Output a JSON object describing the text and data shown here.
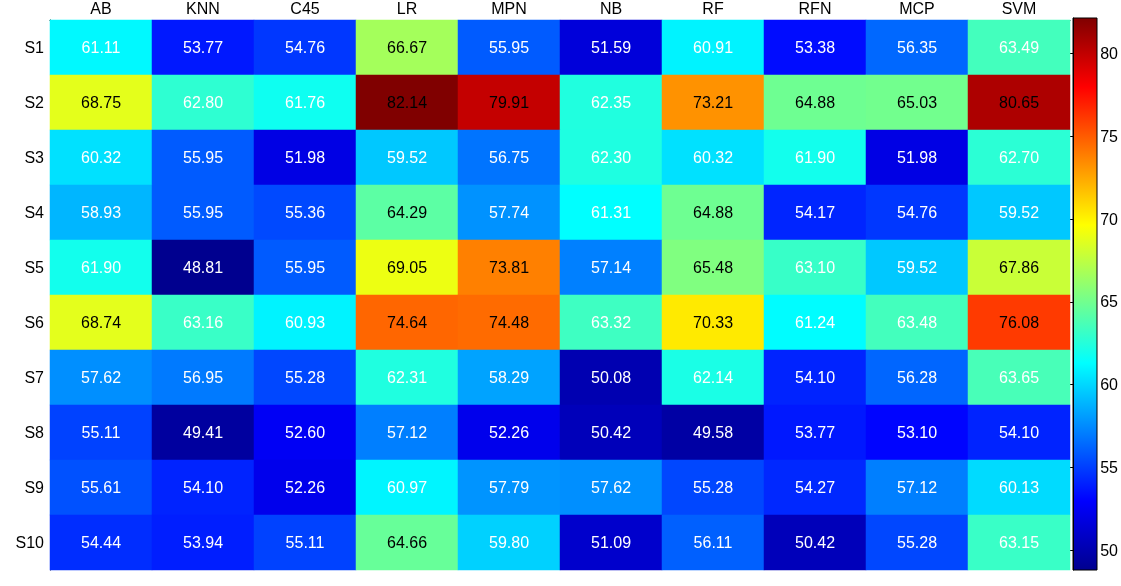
{
  "chart_data": {
    "type": "heatmap",
    "categories": [
      "AB",
      "KNN",
      "C45",
      "LR",
      "MPN",
      "NB",
      "RF",
      "RFN",
      "MCP",
      "SVM"
    ],
    "y_categories": [
      "S1",
      "S2",
      "S3",
      "S4",
      "S5",
      "S6",
      "S7",
      "S8",
      "S9",
      "S10"
    ],
    "cells": [
      [
        61.11,
        53.77,
        54.76,
        66.67,
        55.95,
        51.59,
        60.91,
        53.38,
        56.35,
        63.49
      ],
      [
        68.75,
        62.8,
        61.76,
        82.14,
        79.91,
        62.35,
        73.21,
        64.88,
        65.03,
        80.65
      ],
      [
        60.32,
        55.95,
        51.98,
        59.52,
        56.75,
        62.3,
        60.32,
        61.9,
        51.98,
        62.7
      ],
      [
        58.93,
        55.95,
        55.36,
        64.29,
        57.74,
        61.31,
        64.88,
        54.17,
        54.76,
        59.52
      ],
      [
        61.9,
        48.81,
        55.95,
        69.05,
        73.81,
        57.14,
        65.48,
        63.1,
        59.52,
        67.86
      ],
      [
        68.74,
        63.16,
        60.93,
        74.64,
        74.48,
        63.32,
        70.33,
        61.24,
        63.48,
        76.08
      ],
      [
        57.62,
        56.95,
        55.28,
        62.31,
        58.29,
        50.08,
        62.14,
        54.1,
        56.28,
        63.65
      ],
      [
        55.11,
        49.41,
        52.6,
        57.12,
        52.26,
        50.42,
        49.58,
        53.77,
        53.1,
        54.1
      ],
      [
        55.61,
        54.1,
        52.26,
        60.97,
        57.79,
        57.62,
        55.28,
        54.27,
        57.12,
        60.13
      ],
      [
        54.44,
        53.94,
        55.11,
        64.66,
        59.8,
        51.09,
        56.11,
        50.42,
        55.28,
        63.15
      ]
    ],
    "cell_labels": [
      [
        "61.11",
        "53.77",
        "54.76",
        "66.67",
        "55.95",
        "51.59",
        "60.91",
        "53.38",
        "56.35",
        "63.49"
      ],
      [
        "68.75",
        "62.80",
        "61.76",
        "82.14",
        "79.91",
        "62.35",
        "73.21",
        "64.88",
        "65.03",
        "80.65"
      ],
      [
        "60.32",
        "55.95",
        "51.98",
        "59.52",
        "56.75",
        "62.30",
        "60.32",
        "61.90",
        "51.98",
        "62.70"
      ],
      [
        "58.93",
        "55.95",
        "55.36",
        "64.29",
        "57.74",
        "61.31",
        "64.88",
        "54.17",
        "54.76",
        "59.52"
      ],
      [
        "61.90",
        "48.81",
        "55.95",
        "69.05",
        "73.81",
        "57.14",
        "65.48",
        "63.10",
        "59.52",
        "67.86"
      ],
      [
        "68.74",
        "63.16",
        "60.93",
        "74.64",
        "74.48",
        "63.32",
        "70.33",
        "61.24",
        "63.48",
        "76.08"
      ],
      [
        "57.62",
        "56.95",
        "55.28",
        "62.31",
        "58.29",
        "50.08",
        "62.14",
        "54.10",
        "56.28",
        "63.65"
      ],
      [
        "55.11",
        "49.41",
        "52.60",
        "57.12",
        "52.26",
        "50.42",
        "49.58",
        "53.77",
        "53.10",
        "54.10"
      ],
      [
        "55.61",
        "54.10",
        "52.26",
        "60.97",
        "57.79",
        "57.62",
        "55.28",
        "54.27",
        "57.12",
        "60.13"
      ],
      [
        "54.44",
        "53.94",
        "55.11",
        "64.66",
        "59.80",
        "51.09",
        "56.11",
        "50.42",
        "55.28",
        "63.15"
      ]
    ],
    "clim": [
      48.81,
      82.14
    ],
    "cticks": [
      50,
      55,
      60,
      65,
      70,
      75,
      80
    ]
  }
}
